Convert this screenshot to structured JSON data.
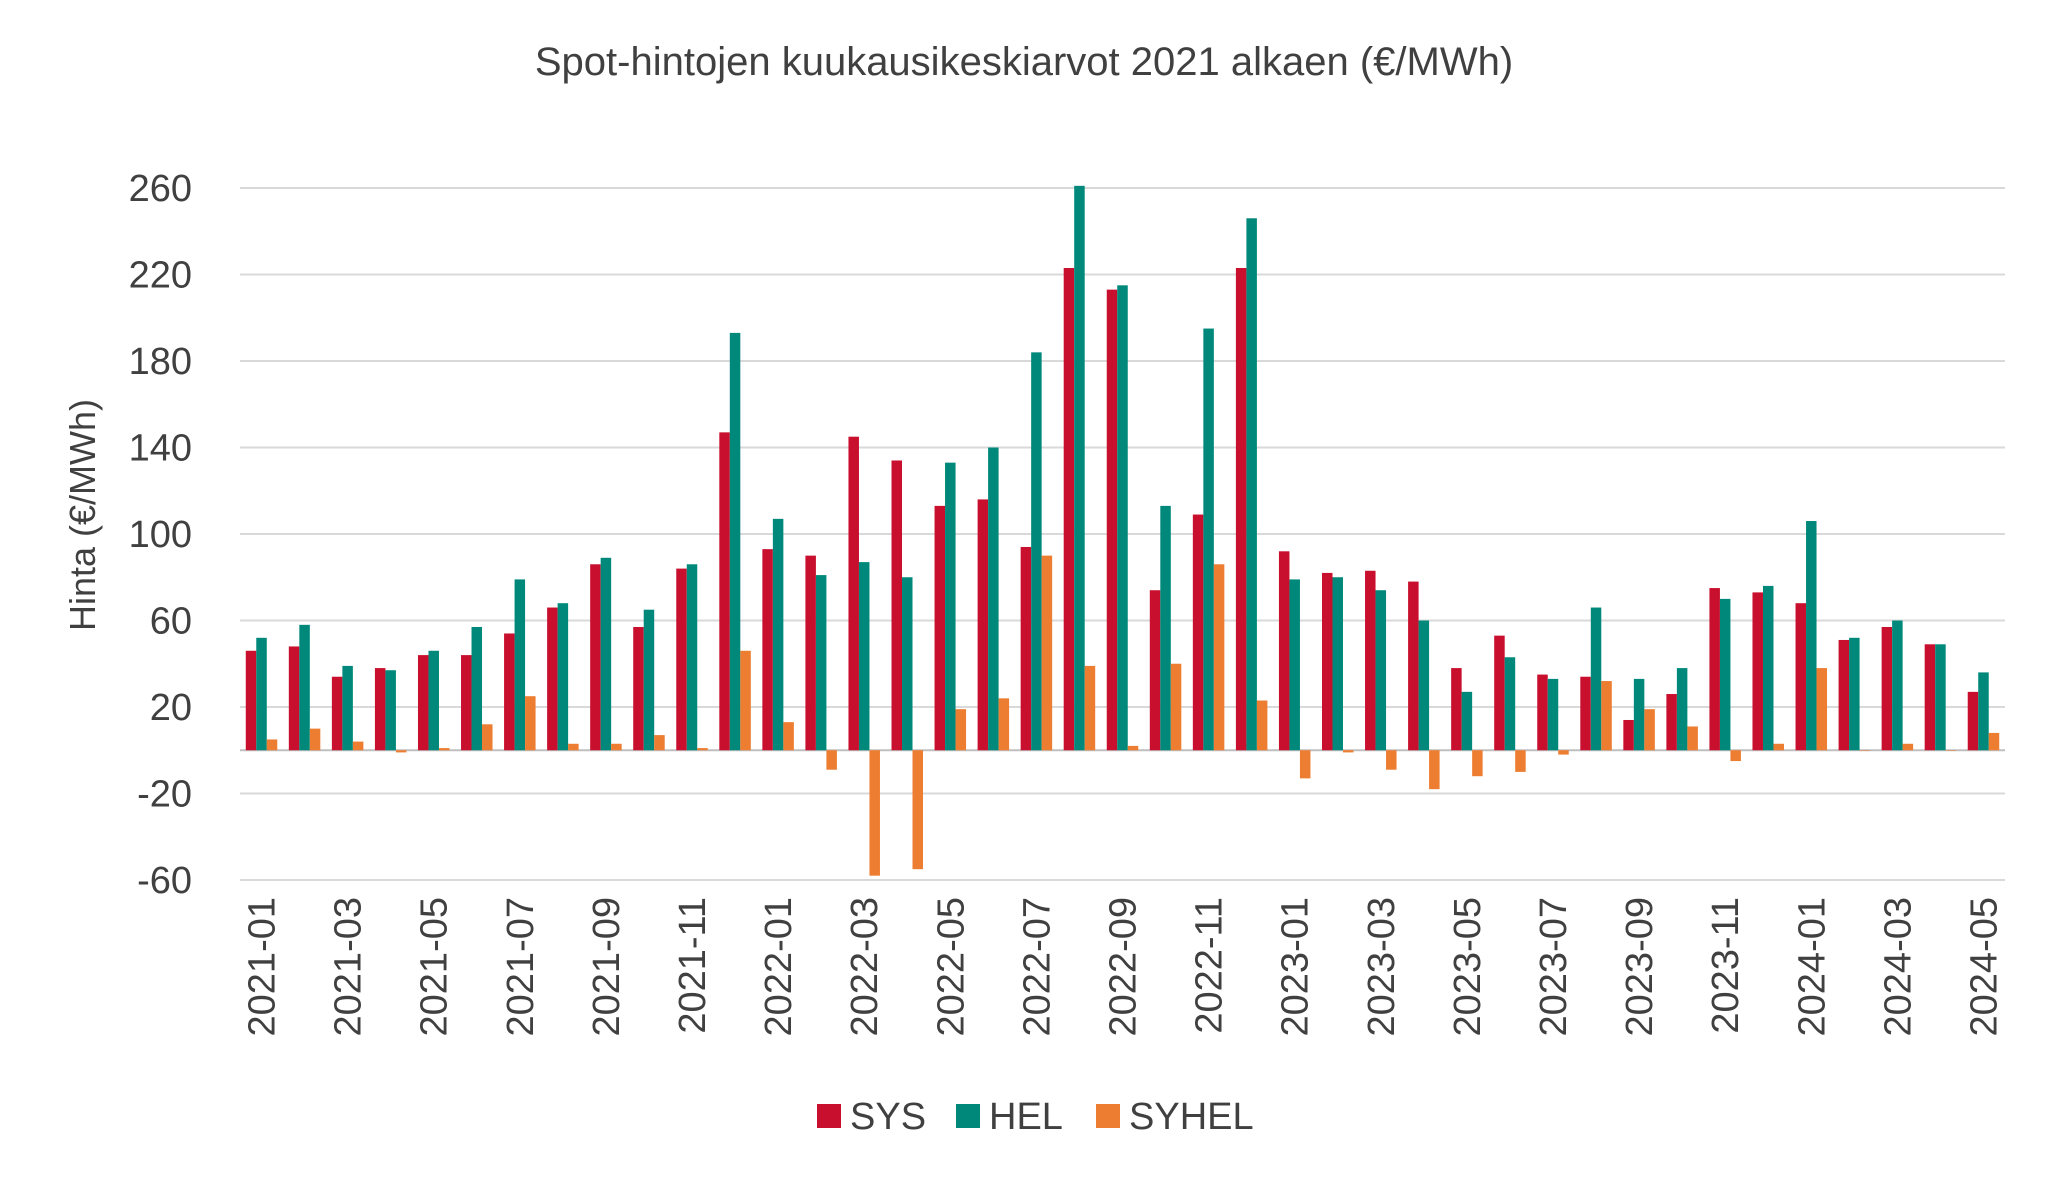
{
  "chart_data": {
    "type": "bar",
    "title": "Spot-hintojen kuukausikeskiarvot 2021 alkaen (€/MWh)",
    "xlabel": "",
    "ylabel": "Hinta (€/MWh)",
    "ylim": [
      -60,
      260
    ],
    "yticks": [
      -60,
      -20,
      20,
      60,
      100,
      140,
      180,
      220,
      260
    ],
    "grid": true,
    "legend": "bottom",
    "categories": [
      "2021-01",
      "2021-02",
      "2021-03",
      "2021-04",
      "2021-05",
      "2021-06",
      "2021-07",
      "2021-08",
      "2021-09",
      "2021-10",
      "2021-11",
      "2021-12",
      "2022-01",
      "2022-02",
      "2022-03",
      "2022-04",
      "2022-05",
      "2022-06",
      "2022-07",
      "2022-08",
      "2022-09",
      "2022-10",
      "2022-11",
      "2022-12",
      "2023-01",
      "2023-02",
      "2023-03",
      "2023-04",
      "2023-05",
      "2023-06",
      "2023-07",
      "2023-08",
      "2023-09",
      "2023-10",
      "2023-11",
      "2023-12",
      "2024-01",
      "2024-02",
      "2024-03",
      "2024-04",
      "2024-05"
    ],
    "tick_labels": [
      "2021-01",
      "2021-03",
      "2021-05",
      "2021-07",
      "2021-09",
      "2021-11",
      "2022-01",
      "2022-03",
      "2022-05",
      "2022-07",
      "2022-09",
      "2022-11",
      "2023-01",
      "2023-03",
      "2023-05",
      "2023-07",
      "2023-09",
      "2023-11",
      "2024-01",
      "2024-03",
      "2024-05"
    ],
    "series": [
      {
        "name": "SYS",
        "color": "#c8102e",
        "values": [
          46,
          48,
          34,
          38,
          44,
          44,
          54,
          66,
          86,
          57,
          84,
          147,
          93,
          90,
          145,
          134,
          113,
          116,
          94,
          223,
          213,
          74,
          109,
          223,
          92,
          82,
          83,
          78,
          38,
          53,
          35,
          34,
          14,
          26,
          75,
          73,
          68,
          51,
          57,
          49,
          27
        ]
      },
      {
        "name": "HEL",
        "color": "#00897b",
        "values": [
          52,
          58,
          39,
          37,
          46,
          57,
          79,
          68,
          89,
          65,
          86,
          193,
          107,
          81,
          87,
          80,
          133,
          140,
          184,
          261,
          215,
          113,
          195,
          246,
          79,
          80,
          74,
          60,
          27,
          43,
          33,
          66,
          33,
          38,
          70,
          76,
          106,
          52,
          60,
          49,
          36
        ]
      },
      {
        "name": "SYHEL",
        "color": "#ed7d31",
        "values": [
          5,
          10,
          4,
          -1,
          1,
          12,
          25,
          3,
          3,
          7,
          1,
          46,
          13,
          -9,
          -58,
          -55,
          19,
          24,
          90,
          39,
          2,
          40,
          86,
          23,
          -13,
          -1,
          -9,
          -18,
          -12,
          -10,
          -2,
          32,
          19,
          11,
          -5,
          3,
          38,
          0,
          3,
          0,
          8
        ]
      }
    ]
  }
}
